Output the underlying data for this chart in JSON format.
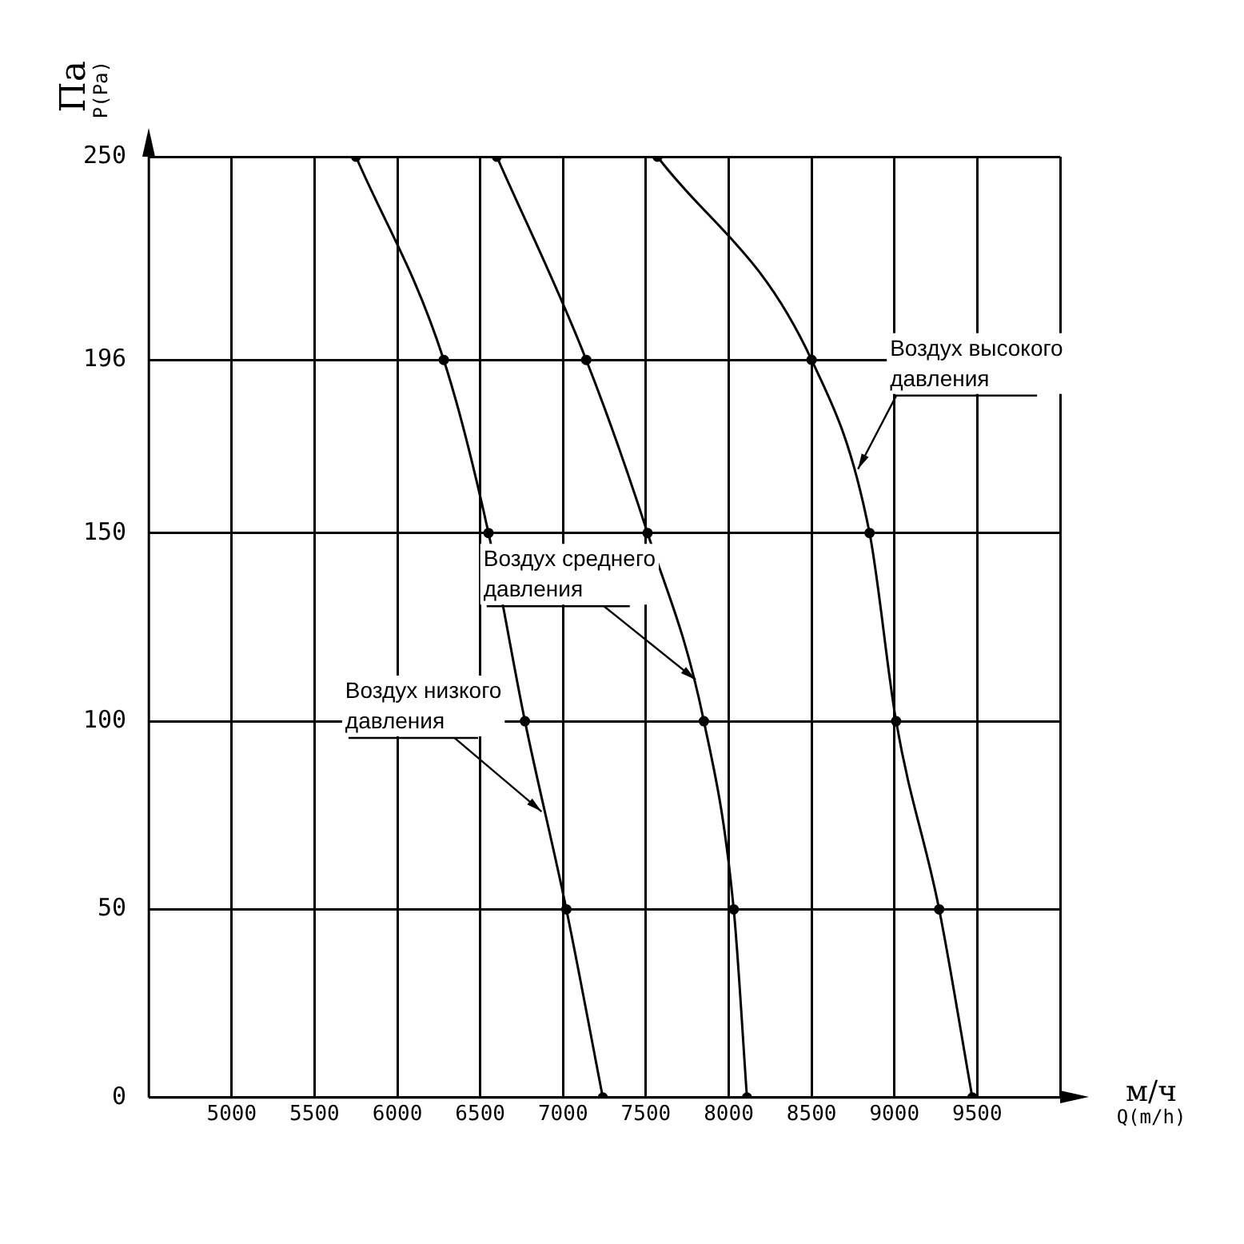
{
  "chart_data": {
    "type": "line",
    "xlabel": "м/ч\nQ(m/h)",
    "ylabel": "Па\nP(Pa)",
    "series": [
      {
        "color": "#000000",
        "x": [
          5750,
          6280,
          6550,
          6770,
          7020,
          7240
        ],
        "values": [
          250,
          196,
          150,
          100,
          50,
          0
        ]
      },
      {
        "color": "#000000",
        "x": [
          6600,
          7140,
          7510,
          7850,
          8030,
          8110
        ],
        "values": [
          250,
          196,
          150,
          100,
          50,
          0
        ]
      },
      {
        "color": "#000000",
        "x": [
          7570,
          8500,
          8850,
          9010,
          9270,
          9470
        ],
        "values": [
          250,
          196,
          150,
          100,
          50,
          0
        ]
      }
    ],
    "xlim": [
      4500,
      10000
    ],
    "xticks": [
      5000,
      5500,
      6000,
      6500,
      7000,
      7500,
      8000,
      8500,
      9000,
      9500,
      {
        "value": 10000,
        "label": null
      }
    ],
    "ylim": [
      0,
      250
    ],
    "yticks": [
      0,
      50,
      100,
      150,
      196,
      250
    ],
    "annotations": [
      {
        "text": "Воздух низкого\nдавления",
        "x": 6870,
        "y": 76
      },
      {
        "text": "Воздух среднего\nдавления",
        "x": 7800,
        "y": 111
      },
      {
        "text": "Воздух высокого\nдавления",
        "x": 8780,
        "y": 167
      }
    ],
    "grid": true,
    "legend": false,
    "marker": "circle",
    "line_style": "solid"
  }
}
